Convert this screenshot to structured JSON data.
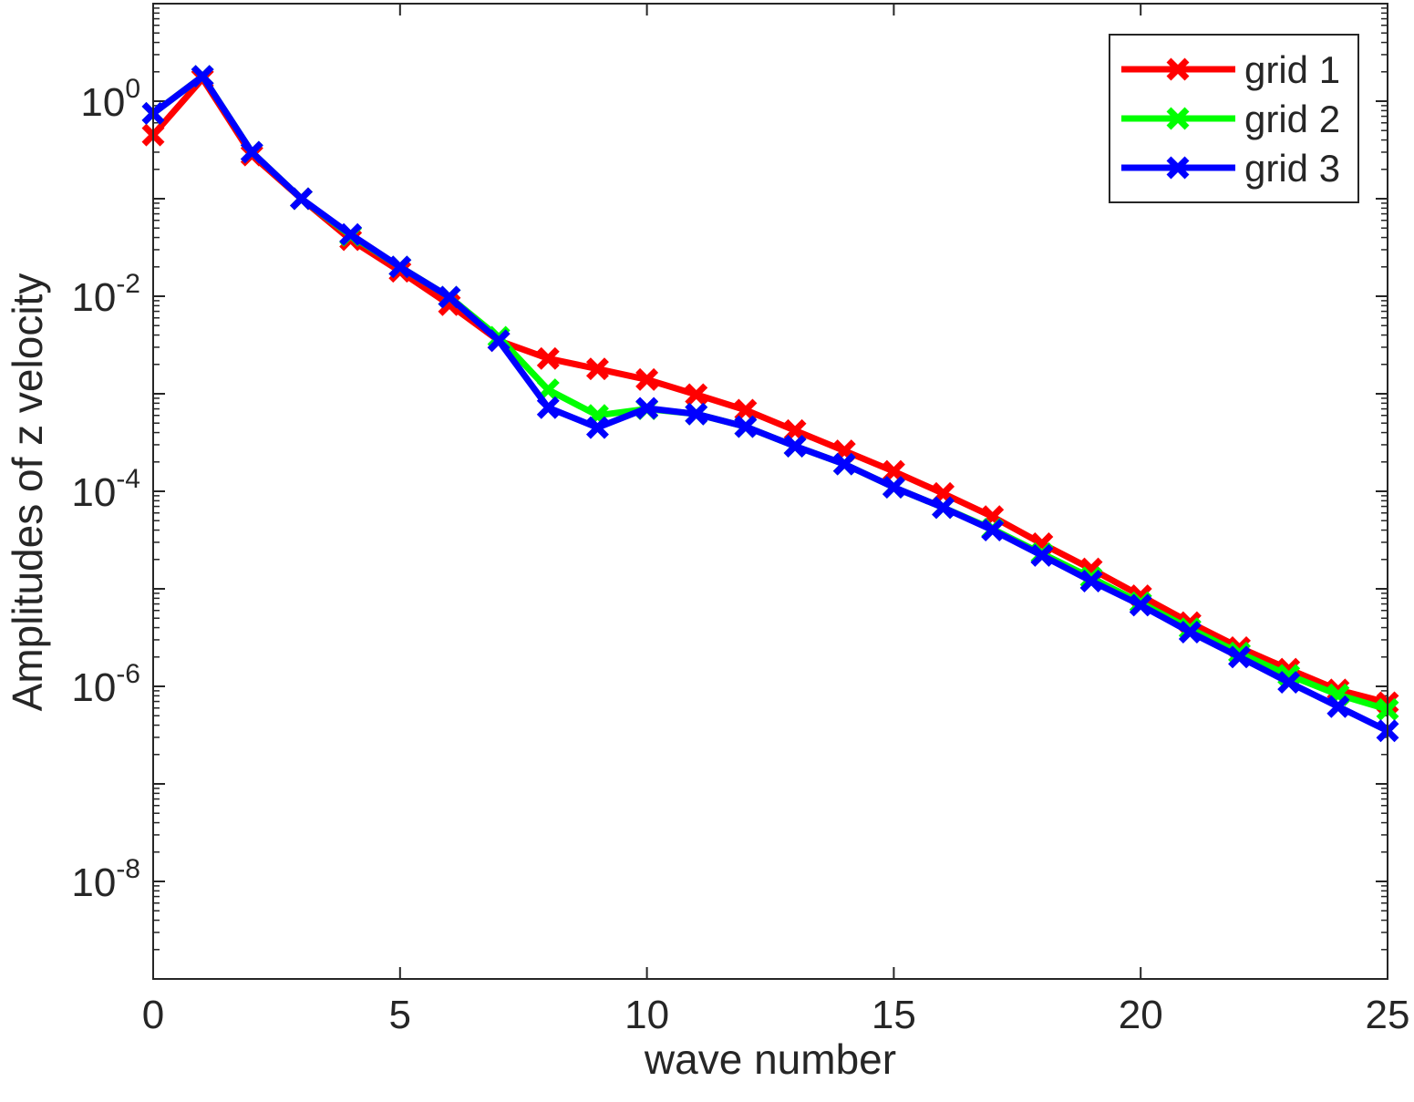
{
  "chart_data": {
    "type": "line",
    "title": "",
    "xlabel": "wave number",
    "ylabel": "Amplitudes of z velocity",
    "xlim": [
      0,
      25
    ],
    "ylim_log10": [
      -9,
      1
    ],
    "yscale": "log",
    "xticks": [
      0,
      5,
      10,
      15,
      20,
      25
    ],
    "xtick_labels": [
      "0",
      "5",
      "10",
      "15",
      "20",
      "25"
    ],
    "yticks_log10": [
      -8,
      -6,
      -4,
      -2,
      0
    ],
    "ytick_labels": [
      {
        "base": "10",
        "exp": "-8"
      },
      {
        "base": "10",
        "exp": "-6"
      },
      {
        "base": "10",
        "exp": "-4"
      },
      {
        "base": "10",
        "exp": "-2"
      },
      {
        "base": "10",
        "exp": "0"
      }
    ],
    "grid": false,
    "legend_position": "top-right",
    "marker": "x",
    "x": [
      0,
      1,
      2,
      3,
      4,
      5,
      6,
      7,
      8,
      9,
      10,
      11,
      12,
      13,
      14,
      15,
      16,
      17,
      18,
      19,
      20,
      21,
      22,
      23,
      24,
      25
    ],
    "series": [
      {
        "name": "grid 1",
        "color": "#ff0000",
        "values": [
          0.45,
          1.7,
          0.28,
          0.1,
          0.038,
          0.018,
          0.0082,
          0.0035,
          0.0023,
          0.0018,
          0.0014,
          0.00098,
          0.00068,
          0.00042,
          0.00026,
          0.00016,
          9.5e-05,
          5.5e-05,
          2.9e-05,
          1.6e-05,
          8.5e-06,
          4.5e-06,
          2.5e-06,
          1.5e-06,
          9.2e-07,
          6.8e-07
        ]
      },
      {
        "name": "grid 2",
        "color": "#00ff00",
        "values": [
          0.75,
          1.8,
          0.3,
          0.1,
          0.042,
          0.02,
          0.0098,
          0.0038,
          0.0011,
          0.0006,
          0.0007,
          0.00062,
          0.00046,
          0.00029,
          0.00019,
          0.00011,
          6.8e-05,
          4.1e-05,
          2.3e-05,
          1.3e-05,
          7.2e-06,
          3.9e-06,
          2.2e-06,
          1.3e-06,
          8.2e-07,
          5.8e-07
        ]
      },
      {
        "name": "grid 3",
        "color": "#0000ff",
        "values": [
          0.75,
          1.8,
          0.3,
          0.1,
          0.043,
          0.02,
          0.0098,
          0.0035,
          0.00072,
          0.00045,
          0.00071,
          0.00062,
          0.00046,
          0.00029,
          0.00019,
          0.00011,
          6.8e-05,
          4e-05,
          2.2e-05,
          1.2e-05,
          6.8e-06,
          3.6e-06,
          2e-06,
          1.1e-06,
          6.2e-07,
          3.5e-07
        ]
      }
    ]
  }
}
